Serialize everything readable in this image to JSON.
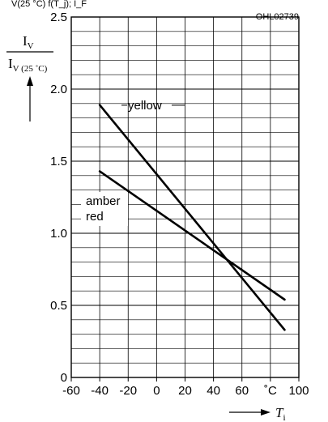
{
  "header_text": "V(25 °C)  f(T_j); I_F",
  "chart_data": {
    "type": "line",
    "ref_code": "OHL02739",
    "ylabel": {
      "main": "I",
      "sub": "V",
      "den_sub": "V (25 ˚C)"
    },
    "xlabel": {
      "main": "T",
      "sub": "i"
    },
    "x_unit": "˚C",
    "xlim": [
      -60,
      100
    ],
    "ylim": [
      0,
      2.5
    ],
    "x_ticks": [
      "-60",
      "-40",
      "-20",
      "0",
      "20",
      "40",
      "60",
      "˚C",
      "100"
    ],
    "x_tick_values": [
      -60,
      -40,
      -20,
      0,
      20,
      40,
      60,
      80,
      100
    ],
    "y_ticks": [
      "0",
      "0.5",
      "1.0",
      "1.5",
      "2.0",
      "2.5"
    ],
    "y_tick_values": [
      0,
      0.5,
      1.0,
      1.5,
      2.0,
      2.5
    ],
    "grid": true,
    "series": [
      {
        "name": "yellow",
        "x": [
          -40,
          90
        ],
        "y": [
          1.89,
          0.33
        ]
      },
      {
        "name_lines": [
          "amber",
          "red"
        ],
        "x": [
          -40,
          90
        ],
        "y": [
          1.43,
          0.54
        ]
      }
    ]
  }
}
